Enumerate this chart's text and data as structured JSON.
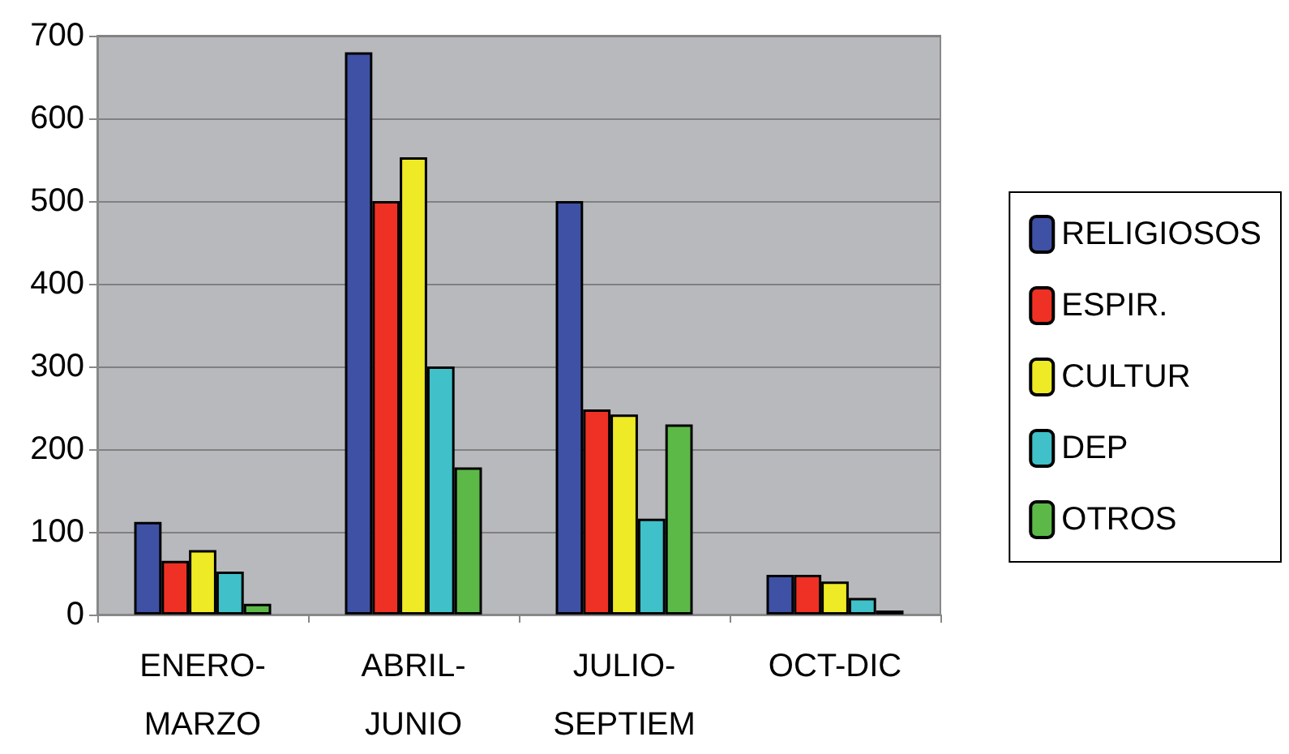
{
  "chart_data": {
    "type": "bar",
    "categories": [
      "ENERO-\nMARZO",
      "ABRIL-\nJUNIO",
      "JULIO-\nSEPTIEM",
      "OCT-DIC"
    ],
    "series": [
      {
        "name": "RELIGIOSOS",
        "color": "#3f51a5",
        "values": [
          112,
          680,
          500,
          48
        ]
      },
      {
        "name": "ESPIR.",
        "color": "#ee3124",
        "values": [
          65,
          500,
          248,
          48
        ]
      },
      {
        "name": "CULTUR",
        "color": "#eeea25",
        "values": [
          78,
          553,
          242,
          40
        ]
      },
      {
        "name": "DEP",
        "color": "#40c0c8",
        "values": [
          52,
          300,
          116,
          20
        ]
      },
      {
        "name": "OTROS",
        "color": "#5cb948",
        "values": [
          13,
          178,
          230,
          5
        ]
      }
    ],
    "ylim": [
      0,
      700
    ],
    "yticks": [
      0,
      100,
      200,
      300,
      400,
      500,
      600,
      700
    ],
    "grid": "y",
    "legend": "right"
  }
}
